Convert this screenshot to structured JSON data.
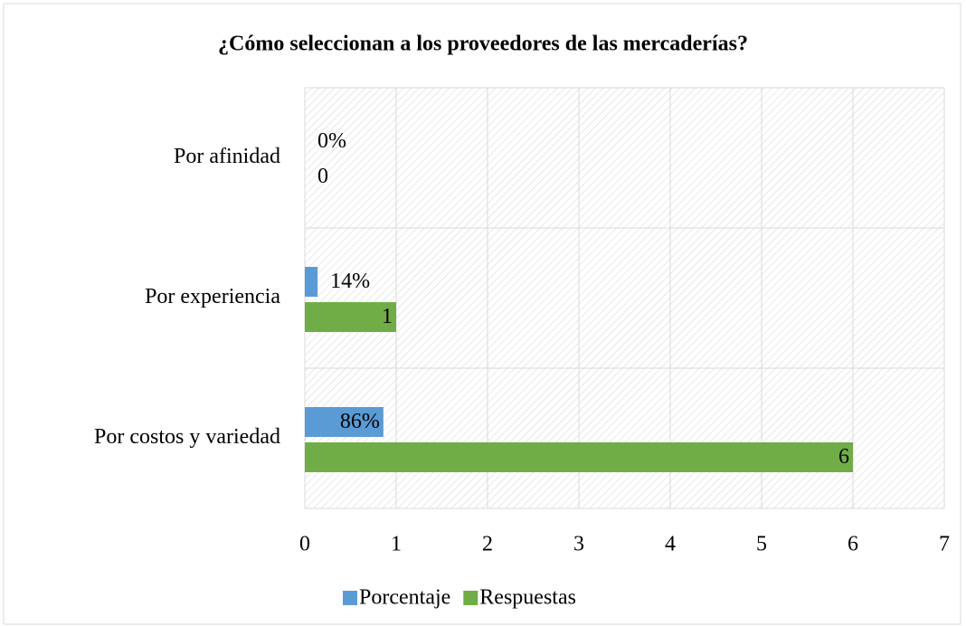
{
  "chart_data": {
    "type": "hbar",
    "title": "¿Cómo seleccionan a los proveedores de las mercaderías?",
    "categories": [
      "Por afinidad",
      "Por experiencia",
      "Por costos y variedad"
    ],
    "series": [
      {
        "name": "Porcentaje",
        "color": "#5b9bd5",
        "values": [
          0,
          0.14,
          0.86
        ],
        "value_labels": [
          "0%",
          "14%",
          "86%"
        ]
      },
      {
        "name": "Respuestas",
        "color": "#70ad47",
        "values": [
          0,
          1,
          6
        ]
      }
    ],
    "xlim": [
      0,
      7
    ],
    "xticks": [
      0,
      1,
      2,
      3,
      4,
      5,
      6,
      7
    ],
    "grid": true,
    "legend": "bottom"
  }
}
